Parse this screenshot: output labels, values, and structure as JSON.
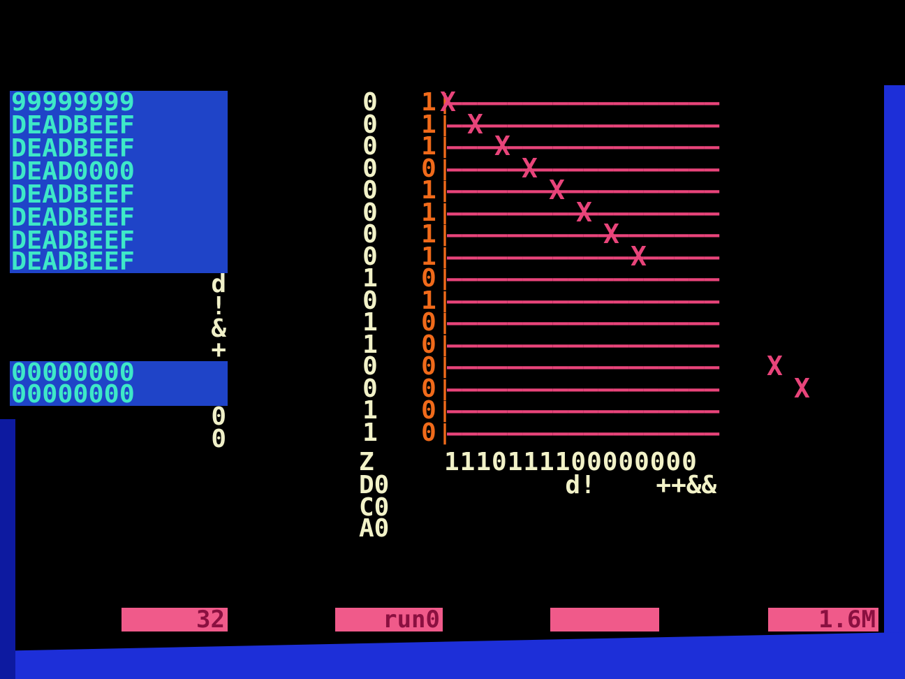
{
  "registers": [
    "99999999",
    "DEADBEEF",
    "DEADBEEF",
    "DEAD0000",
    "DEADBEEF",
    "DEADBEEF",
    "DEADBEEF",
    "DEADBEEF"
  ],
  "register_flags": [
    "d",
    "!",
    "&",
    "+"
  ],
  "registers2": [
    "00000000",
    "00000000"
  ],
  "register_tail": [
    "0",
    "0"
  ],
  "column_a": [
    "0",
    "0",
    "0",
    "0",
    "0",
    "0",
    "0",
    "0",
    "1",
    "0",
    "1",
    "1",
    "0",
    "0",
    "1",
    "1"
  ],
  "column_b": [
    "1",
    "1",
    "1",
    "0",
    "1",
    "1",
    "1",
    "1",
    "0",
    "1",
    "0",
    "0",
    "0",
    "0",
    "0",
    "0"
  ],
  "x_marks": [
    {
      "row": 0,
      "col": 0
    },
    {
      "row": 1,
      "col": 1
    },
    {
      "row": 2,
      "col": 2
    },
    {
      "row": 3,
      "col": 3
    },
    {
      "row": 4,
      "col": 4
    },
    {
      "row": 5,
      "col": 5
    },
    {
      "row": 6,
      "col": 6
    },
    {
      "row": 7,
      "col": 7
    },
    {
      "row": 12,
      "col": 12
    },
    {
      "row": 13,
      "col": 13
    }
  ],
  "dash_line": "——————————————————",
  "bit_string": "1110111100000000",
  "bit_marks": "        d!    ++&&",
  "flags": {
    "z": "Z",
    "d": "D0",
    "c": "C0",
    "a": "A0"
  },
  "status_bar": {
    "count": "32",
    "mode": "run0",
    "blank": "",
    "speed": "1.6M"
  },
  "colors": {
    "register_bg": "#1f44c8",
    "register_fg": "#3ee8c8",
    "orange": "#f06a1a",
    "pink": "#e8447a",
    "cream": "#f2f2c8",
    "status_bg": "#f05a8a"
  }
}
